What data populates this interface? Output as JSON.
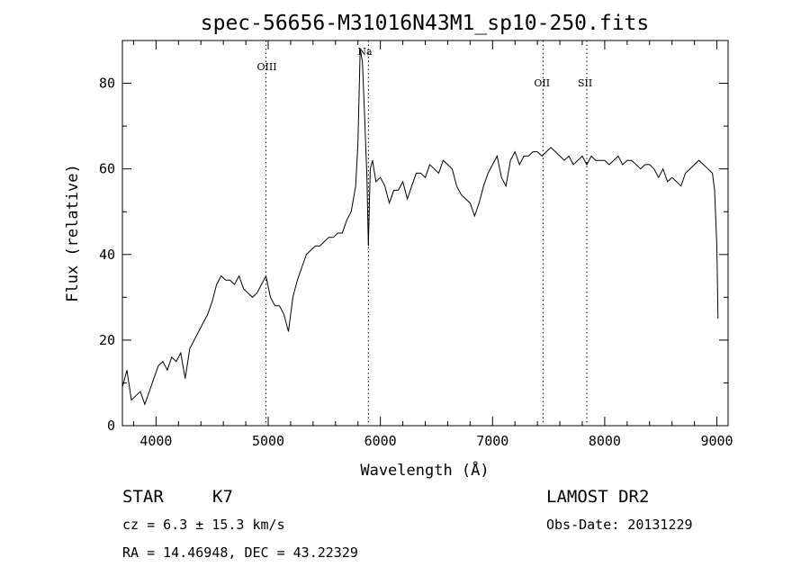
{
  "chart_data": {
    "type": "line",
    "title": "spec-56656-M31016N43M1_sp10-250.fits",
    "xlabel": "Wavelength (Å)",
    "ylabel": "Flux (relative)",
    "xlim": [
      3700,
      9100
    ],
    "ylim": [
      0,
      90
    ],
    "xticks": [
      4000,
      5000,
      6000,
      7000,
      8000,
      9000
    ],
    "yticks": [
      0,
      20,
      40,
      60,
      80
    ],
    "grid": false,
    "lines": [
      {
        "label": "OIII",
        "x": 4980
      },
      {
        "label": "Na",
        "x": 5893
      },
      {
        "label": "OII",
        "x": 7450
      },
      {
        "label": "SII",
        "x": 7840
      }
    ],
    "series": [
      {
        "x": [
          3700,
          3740,
          3780,
          3820,
          3860,
          3900,
          3940,
          3980,
          4020,
          4060,
          4100,
          4140,
          4180,
          4220,
          4260,
          4300,
          4340,
          4380,
          4420,
          4460,
          4500,
          4540,
          4580,
          4620,
          4660,
          4700,
          4740,
          4780,
          4820,
          4860,
          4900,
          4940,
          4980,
          5020,
          5060,
          5100,
          5140,
          5180,
          5220,
          5260,
          5300,
          5340,
          5380,
          5420,
          5460,
          5500,
          5540,
          5580,
          5620,
          5660,
          5700,
          5740,
          5780,
          5800,
          5820,
          5840,
          5860,
          5880,
          5893,
          5910,
          5930,
          5960,
          6000,
          6040,
          6080,
          6120,
          6160,
          6200,
          6240,
          6280,
          6320,
          6360,
          6400,
          6440,
          6480,
          6520,
          6560,
          6600,
          6640,
          6680,
          6720,
          6760,
          6800,
          6840,
          6880,
          6920,
          6960,
          7000,
          7040,
          7080,
          7120,
          7160,
          7200,
          7240,
          7280,
          7320,
          7360,
          7400,
          7440,
          7480,
          7520,
          7560,
          7600,
          7640,
          7680,
          7720,
          7760,
          7800,
          7840,
          7880,
          7920,
          7960,
          8000,
          8040,
          8080,
          8120,
          8160,
          8200,
          8240,
          8280,
          8320,
          8360,
          8400,
          8440,
          8480,
          8520,
          8560,
          8600,
          8640,
          8680,
          8720,
          8760,
          8800,
          8840,
          8880,
          8920,
          8960,
          8980,
          9000,
          9010
        ],
        "y": [
          9,
          13,
          6,
          7,
          8,
          5,
          8,
          11,
          14,
          15,
          13,
          16,
          15,
          17,
          11,
          18,
          20,
          22,
          24,
          26,
          29,
          33,
          35,
          34,
          34,
          33,
          35,
          32,
          31,
          30,
          31,
          33,
          35,
          30,
          28,
          28,
          26,
          22,
          30,
          34,
          37,
          40,
          41,
          42,
          42,
          43,
          44,
          44,
          45,
          45,
          48,
          50,
          56,
          66,
          88,
          85,
          72,
          58,
          42,
          60,
          62,
          57,
          58,
          56,
          52,
          55,
          55,
          57,
          53,
          56,
          59,
          59,
          58,
          61,
          60,
          59,
          62,
          61,
          60,
          56,
          54,
          53,
          52,
          49,
          52,
          56,
          59,
          61,
          63,
          58,
          56,
          62,
          64,
          61,
          63,
          63,
          64,
          64,
          63,
          64,
          65,
          64,
          63,
          62,
          63,
          61,
          62,
          63,
          61,
          63,
          62,
          62,
          62,
          61,
          62,
          63,
          61,
          62,
          62,
          61,
          60,
          61,
          61,
          60,
          58,
          60,
          57,
          58,
          57,
          56,
          59,
          60,
          61,
          62,
          61,
          60,
          59,
          55,
          42,
          25
        ]
      }
    ]
  },
  "info": {
    "class_label": "STAR",
    "subclass": "K7",
    "survey": "LAMOST DR2",
    "cz": "cz = 6.3 ± 15.3 km/s",
    "obs_date": "Obs-Date: 20131229",
    "coords": "RA =  14.46948, DEC =  43.22329"
  }
}
